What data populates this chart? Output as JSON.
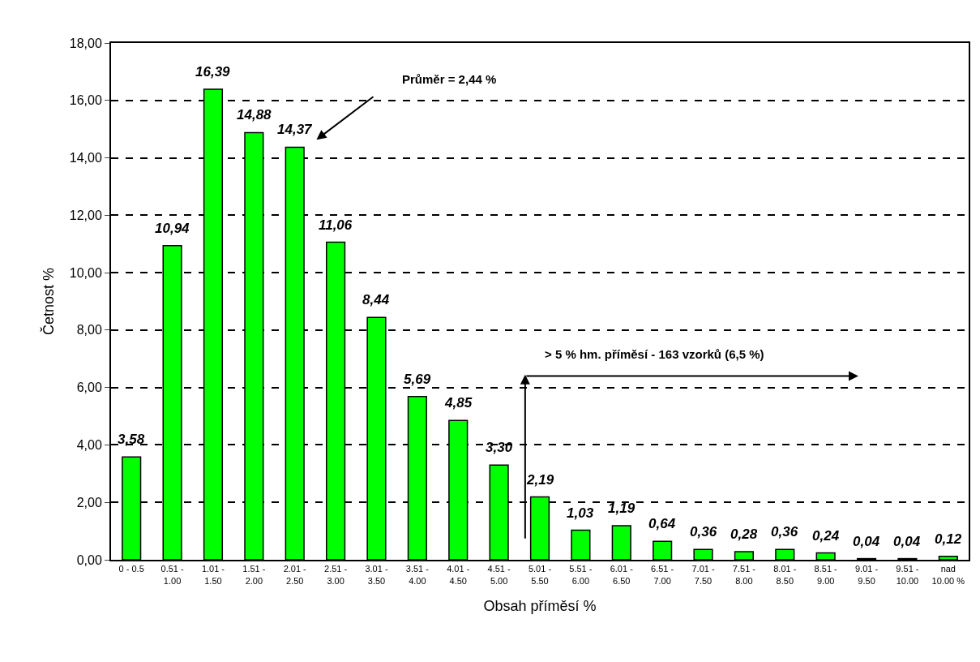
{
  "chart_data": {
    "type": "bar",
    "categories": [
      "0 - 0.5",
      "0.51 - 1.00",
      "1.01 - 1.50",
      "1.51 - 2.00",
      "2.01 - 2.50",
      "2.51 - 3.00",
      "3.01 - 3.50",
      "3.51 - 4.00",
      "4.01 - 4.50",
      "4.51 - 5.00",
      "5.01 - 5.50",
      "5.51 - 6.00",
      "6.01 - 6.50",
      "6.51 - 7.00",
      "7.01 - 7.50",
      "7.51 - 8.00",
      "8.01 - 8.50",
      "8.51 - 9.00",
      "9.01 - 9.50",
      "9.51 - 10.00",
      "nad 10.00 %"
    ],
    "values": [
      3.58,
      10.94,
      16.39,
      14.88,
      14.37,
      11.06,
      8.44,
      5.69,
      4.85,
      3.3,
      2.19,
      1.03,
      1.19,
      0.64,
      0.36,
      0.28,
      0.36,
      0.24,
      0.04,
      0.04,
      0.12
    ],
    "value_labels": [
      "3,58",
      "10,94",
      "16,39",
      "14,88",
      "14,37",
      "11,06",
      "8,44",
      "5,69",
      "4,85",
      "3,30",
      "2,19",
      "1,03",
      "1,19",
      "0,64",
      "0,36",
      "0,28",
      "0,36",
      "0,24",
      "0,04",
      "0,04",
      "0,12"
    ],
    "color": "#00ff00",
    "xlabel": "Obsah příměsí %",
    "ylabel": "Četnost %",
    "ylim": [
      0,
      18
    ],
    "yticks": [
      {
        "value": 0,
        "label": "0,00"
      },
      {
        "value": 2,
        "label": "2,00"
      },
      {
        "value": 4,
        "label": "4,00"
      },
      {
        "value": 6,
        "label": "6,00"
      },
      {
        "value": 8,
        "label": "8,00"
      },
      {
        "value": 10,
        "label": "10,00"
      },
      {
        "value": 12,
        "label": "12,00"
      },
      {
        "value": 14,
        "label": "14,00"
      },
      {
        "value": 16,
        "label": "16,00"
      },
      {
        "value": 18,
        "label": "18,00"
      }
    ],
    "grid": "y",
    "line_style": "dashed",
    "annotations": [
      "Průměr = 2,44 %",
      "> 5 % hm. příměsí - 163 vzorků (6,5 %)"
    ]
  }
}
